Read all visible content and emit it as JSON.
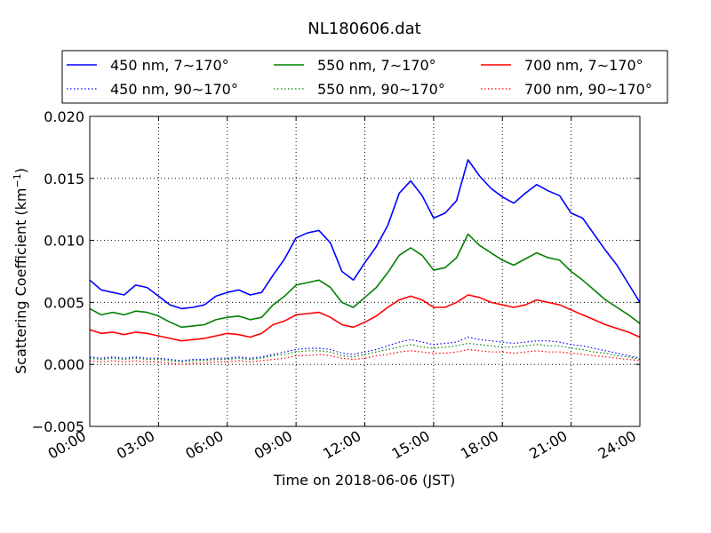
{
  "chart_data": {
    "type": "line",
    "title": "NL180606.dat",
    "xlabel": "Time on 2018-06-06 (JST)",
    "ylabel_main": "Scattering Coefficient (km",
    "ylabel_sup": "−1",
    "ylabel_end": ")",
    "xlim": [
      0,
      24
    ],
    "ylim": [
      -0.005,
      0.02
    ],
    "grid": true,
    "legend_placement": "top",
    "x_ticks": [
      0,
      3,
      6,
      9,
      12,
      15,
      18,
      21,
      24
    ],
    "x_tick_labels": [
      "00:00",
      "03:00",
      "06:00",
      "09:00",
      "12:00",
      "15:00",
      "18:00",
      "21:00",
      "24:00"
    ],
    "y_ticks": [
      -0.005,
      0.0,
      0.005,
      0.01,
      0.015,
      0.02
    ],
    "y_tick_labels": [
      "−0.005",
      "0.000",
      "0.005",
      "0.010",
      "0.015",
      "0.020"
    ],
    "x_hours": [
      0,
      0.5,
      1,
      1.5,
      2,
      2.5,
      3,
      3.5,
      4,
      4.5,
      5,
      5.5,
      6,
      6.5,
      7,
      7.5,
      8,
      8.5,
      9,
      9.5,
      10,
      10.5,
      11,
      11.5,
      12,
      12.5,
      13,
      13.5,
      14,
      14.5,
      15,
      15.5,
      16,
      16.5,
      17,
      17.5,
      18,
      18.5,
      19,
      19.5,
      20,
      20.5,
      21,
      21.5,
      22,
      22.5,
      23,
      23.5,
      24
    ],
    "series": [
      {
        "name": "450 nm, 7∼170°",
        "color": "#0000ff",
        "style": "solid",
        "values": [
          0.0068,
          0.006,
          0.0058,
          0.0056,
          0.0064,
          0.0062,
          0.0055,
          0.0048,
          0.0045,
          0.0046,
          0.0048,
          0.0055,
          0.0058,
          0.006,
          0.0056,
          0.0058,
          0.0072,
          0.0085,
          0.0102,
          0.0106,
          0.0108,
          0.0098,
          0.0075,
          0.0068,
          0.0082,
          0.0095,
          0.0112,
          0.0138,
          0.0148,
          0.0136,
          0.0118,
          0.0122,
          0.0132,
          0.0165,
          0.0152,
          0.0142,
          0.0135,
          0.013,
          0.0138,
          0.0145,
          0.014,
          0.0136,
          0.0122,
          0.0118,
          0.0105,
          0.0092,
          0.008,
          0.0065,
          0.005
        ]
      },
      {
        "name": "550 nm, 7∼170°",
        "color": "#008000",
        "style": "solid",
        "values": [
          0.0045,
          0.004,
          0.0042,
          0.004,
          0.0043,
          0.0042,
          0.0039,
          0.0034,
          0.003,
          0.0031,
          0.0032,
          0.0036,
          0.0038,
          0.0039,
          0.0036,
          0.0038,
          0.0048,
          0.0055,
          0.0064,
          0.0066,
          0.0068,
          0.0062,
          0.005,
          0.0046,
          0.0054,
          0.0062,
          0.0074,
          0.0088,
          0.0094,
          0.0088,
          0.0076,
          0.0078,
          0.0086,
          0.0105,
          0.0096,
          0.009,
          0.0084,
          0.008,
          0.0085,
          0.009,
          0.0086,
          0.0084,
          0.0075,
          0.0068,
          0.006,
          0.0052,
          0.0046,
          0.004,
          0.0033
        ]
      },
      {
        "name": "700 nm, 7∼170°",
        "color": "#ff0000",
        "style": "solid",
        "values": [
          0.0028,
          0.0025,
          0.0026,
          0.0024,
          0.0026,
          0.0025,
          0.0023,
          0.0021,
          0.0019,
          0.002,
          0.0021,
          0.0023,
          0.0025,
          0.0024,
          0.0022,
          0.0025,
          0.0032,
          0.0035,
          0.004,
          0.0041,
          0.0042,
          0.0038,
          0.0032,
          0.003,
          0.0034,
          0.0039,
          0.0046,
          0.0052,
          0.0055,
          0.0052,
          0.0046,
          0.0046,
          0.005,
          0.0056,
          0.0054,
          0.005,
          0.0048,
          0.0046,
          0.0048,
          0.0052,
          0.005,
          0.0048,
          0.0044,
          0.004,
          0.0036,
          0.0032,
          0.0029,
          0.0026,
          0.0022
        ]
      },
      {
        "name": "450 nm, 90∼170°",
        "color": "#0000ff",
        "style": "dotted",
        "values": [
          0.0006,
          0.0005,
          0.0006,
          0.0005,
          0.0006,
          0.0005,
          0.0005,
          0.0004,
          0.0003,
          0.0004,
          0.0004,
          0.0005,
          0.0005,
          0.0006,
          0.0005,
          0.0006,
          0.0008,
          0.001,
          0.0012,
          0.0013,
          0.0013,
          0.0012,
          0.0009,
          0.0008,
          0.001,
          0.0012,
          0.0015,
          0.0018,
          0.002,
          0.0018,
          0.0016,
          0.0017,
          0.0018,
          0.0022,
          0.002,
          0.0019,
          0.0018,
          0.0017,
          0.0018,
          0.0019,
          0.0019,
          0.0018,
          0.0016,
          0.0015,
          0.0013,
          0.0011,
          0.0009,
          0.0007,
          0.0005
        ]
      },
      {
        "name": "550 nm, 90∼170°",
        "color": "#008000",
        "style": "dotted",
        "values": [
          0.0005,
          0.0004,
          0.0005,
          0.0004,
          0.0005,
          0.0004,
          0.0004,
          0.0003,
          0.0002,
          0.0003,
          0.0003,
          0.0004,
          0.0004,
          0.0005,
          0.0004,
          0.0005,
          0.0007,
          0.0008,
          0.001,
          0.0011,
          0.0011,
          0.001,
          0.0007,
          0.0006,
          0.0008,
          0.001,
          0.0012,
          0.0014,
          0.0016,
          0.0014,
          0.0013,
          0.0014,
          0.0015,
          0.0017,
          0.0016,
          0.0015,
          0.0014,
          0.0014,
          0.0015,
          0.0016,
          0.0015,
          0.0015,
          0.0013,
          0.0012,
          0.001,
          0.0009,
          0.0007,
          0.0006,
          0.0004
        ]
      },
      {
        "name": "700 nm, 90∼170°",
        "color": "#ff0000",
        "style": "dotted",
        "values": [
          0.0003,
          0.0002,
          0.0003,
          0.0002,
          0.0003,
          0.0002,
          0.0002,
          0.0001,
          0.0,
          0.0001,
          0.0001,
          0.0002,
          0.0002,
          0.0003,
          0.0002,
          0.0003,
          0.0004,
          0.0005,
          0.0007,
          0.0007,
          0.0008,
          0.0007,
          0.0005,
          0.0004,
          0.0005,
          0.0007,
          0.0008,
          0.001,
          0.0011,
          0.001,
          0.0009,
          0.0009,
          0.001,
          0.0012,
          0.0011,
          0.001,
          0.001,
          0.0009,
          0.001,
          0.0011,
          0.001,
          0.001,
          0.0009,
          0.0008,
          0.0007,
          0.0006,
          0.0005,
          0.0004,
          0.0003
        ]
      }
    ]
  }
}
